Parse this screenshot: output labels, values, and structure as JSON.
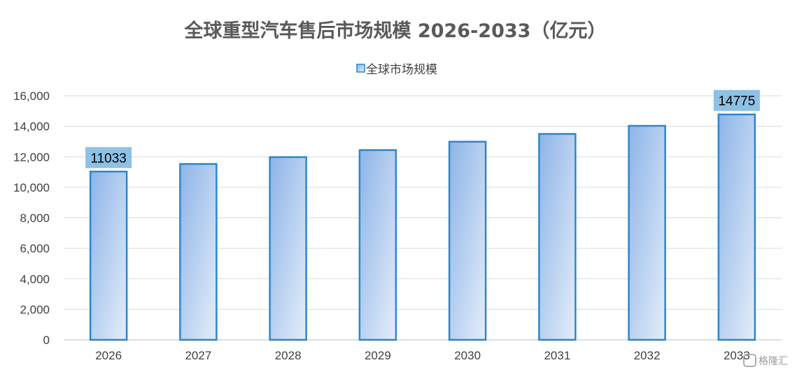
{
  "chart_data": {
    "type": "bar",
    "title": "全球重型汽车售后市场规模 2026-2033（亿元）",
    "categories": [
      "2026",
      "2027",
      "2028",
      "2029",
      "2030",
      "2031",
      "2032",
      "2033"
    ],
    "series": [
      {
        "name": "全球市场规模",
        "values": [
          11033,
          11530,
          11980,
          12440,
          12990,
          13500,
          14030,
          14775
        ]
      }
    ],
    "data_labels": [
      {
        "category": "2026",
        "text": "11033"
      },
      {
        "category": "2033",
        "text": "14775"
      }
    ],
    "ylim": [
      0,
      16000
    ],
    "yticks": [
      0,
      2000,
      4000,
      6000,
      8000,
      10000,
      12000,
      14000,
      16000
    ],
    "ytick_labels": [
      "0",
      "2,000",
      "4,000",
      "6,000",
      "8,000",
      "10,000",
      "12,000",
      "14,000",
      "16,000"
    ],
    "xlabel": "",
    "ylabel": "",
    "grid": true,
    "legend_position": "top",
    "colors": {
      "bar_fill_dark": "#8db4e8",
      "bar_fill_light": "#dde8f7",
      "bar_border": "#2e86c8",
      "label_box": "#8ec1e6",
      "grid": "#d9d9d9"
    }
  },
  "watermark": {
    "text": "格隆汇"
  }
}
